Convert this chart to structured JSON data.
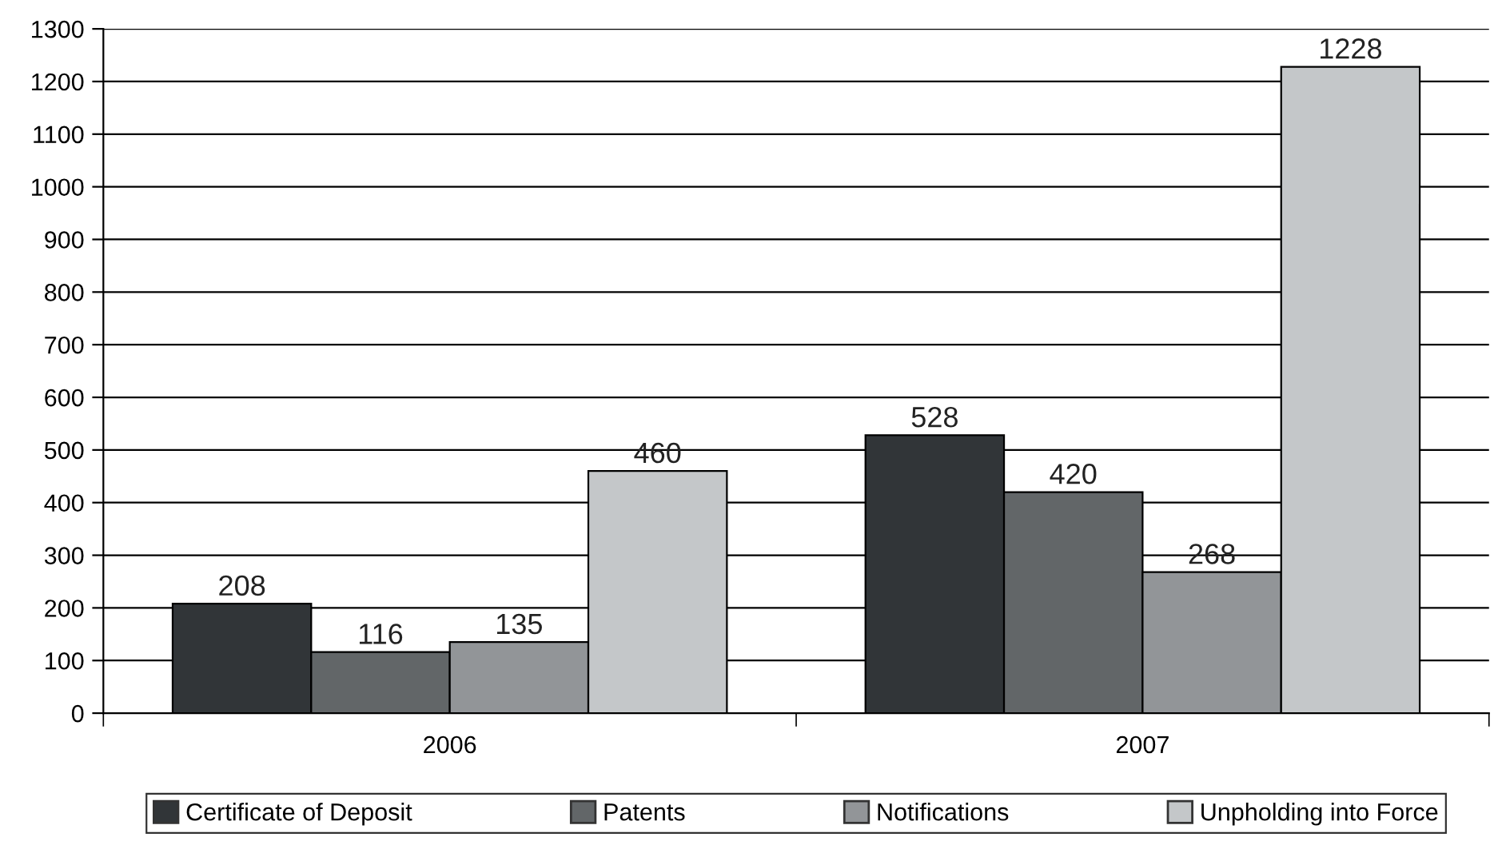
{
  "chart_data": {
    "type": "bar",
    "categories": [
      "2006",
      "2007"
    ],
    "series": [
      {
        "name": "Certificate of Deposit",
        "color": "#313538",
        "values": [
          208,
          528
        ]
      },
      {
        "name": "Patents",
        "color": "#626668",
        "values": [
          116,
          420
        ]
      },
      {
        "name": "Notifications",
        "color": "#929598",
        "values": [
          135,
          268
        ]
      },
      {
        "name": "Unpholding into Force",
        "color": "#c4c7c9",
        "values": [
          460,
          1228
        ]
      }
    ],
    "ylim": [
      0,
      1300
    ],
    "yticks": [
      0,
      100,
      200,
      300,
      400,
      500,
      600,
      700,
      800,
      900,
      1000,
      1100,
      1200,
      1300
    ],
    "grid": "y",
    "legend": "bottom",
    "data_labels": true
  }
}
